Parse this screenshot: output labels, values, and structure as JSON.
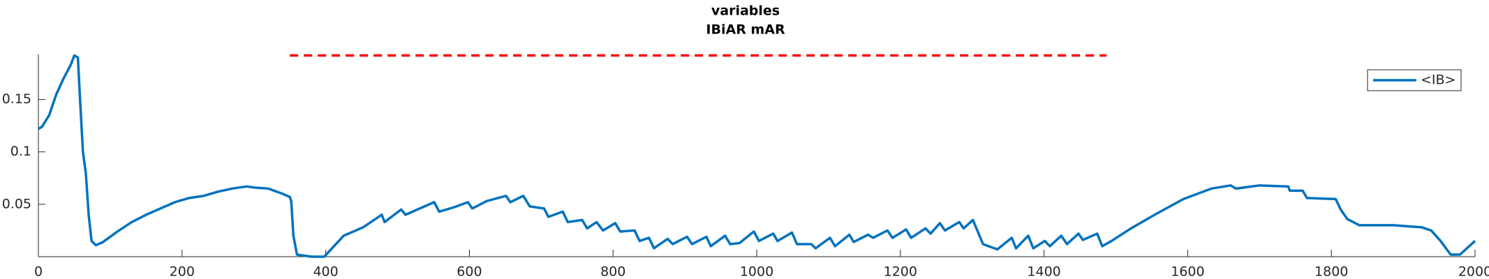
{
  "chart_data": {
    "type": "line",
    "title": "variables",
    "subtitle": "IBiAR mAR",
    "xlim": [
      0,
      2000
    ],
    "ylim": [
      0,
      0.193
    ],
    "xticks": [
      0,
      200,
      400,
      600,
      800,
      1000,
      1200,
      1400,
      1600,
      1800,
      2000
    ],
    "yticks": [
      0.05,
      0.1,
      0.15
    ],
    "legend": "upper right",
    "series": [
      {
        "name": "<IB>",
        "color": "#0072bd",
        "x": [
          0,
          5,
          15,
          25,
          35,
          45,
          50,
          55,
          58,
          62,
          66,
          70,
          74,
          80,
          90,
          110,
          130,
          150,
          170,
          190,
          210,
          230,
          250,
          270,
          290,
          300,
          320,
          340,
          350,
          352,
          355,
          360,
          380,
          398,
          425,
          452,
          478,
          482,
          505,
          511,
          531,
          551,
          558,
          578,
          598,
          604,
          624,
          651,
          657,
          675,
          684,
          704,
          710,
          730,
          737,
          757,
          764,
          777,
          786,
          803,
          810,
          830,
          837,
          850,
          857,
          876,
          883,
          903,
          910,
          930,
          936,
          956,
          963,
          976,
          996,
          1003,
          1023,
          1029,
          1049,
          1056,
          1076,
          1082,
          1102,
          1109,
          1129,
          1135,
          1155,
          1162,
          1182,
          1189,
          1208,
          1215,
          1235,
          1242,
          1255,
          1262,
          1282,
          1288,
          1301,
          1315,
          1335,
          1355,
          1361,
          1378,
          1385,
          1401,
          1408,
          1424,
          1432,
          1448,
          1454,
          1474,
          1481,
          1494,
          1521,
          1554,
          1594,
          1633,
          1660,
          1667,
          1700,
          1740,
          1742,
          1760,
          1766,
          1806,
          1813,
          1822,
          1839,
          1886,
          1926,
          1939,
          1952,
          1966,
          1979,
          2000
        ],
        "values": [
          0.122,
          0.124,
          0.135,
          0.155,
          0.17,
          0.183,
          0.192,
          0.19,
          0.15,
          0.1,
          0.08,
          0.04,
          0.015,
          0.011,
          0.014,
          0.024,
          0.033,
          0.04,
          0.046,
          0.052,
          0.056,
          0.058,
          0.062,
          0.065,
          0.067,
          0.066,
          0.065,
          0.06,
          0.057,
          0.053,
          0.02,
          0.002,
          0,
          0,
          0.02,
          0.028,
          0.04,
          0.033,
          0.045,
          0.04,
          0.046,
          0.052,
          0.043,
          0.047,
          0.052,
          0.046,
          0.053,
          0.058,
          0.052,
          0.058,
          0.048,
          0.046,
          0.038,
          0.043,
          0.033,
          0.035,
          0.027,
          0.033,
          0.025,
          0.032,
          0.024,
          0.025,
          0.015,
          0.018,
          0.008,
          0.017,
          0.012,
          0.019,
          0.012,
          0.019,
          0.01,
          0.02,
          0.012,
          0.013,
          0.024,
          0.015,
          0.022,
          0.015,
          0.023,
          0.012,
          0.012,
          0.008,
          0.018,
          0.01,
          0.021,
          0.014,
          0.021,
          0.018,
          0.025,
          0.018,
          0.026,
          0.018,
          0.027,
          0.022,
          0.032,
          0.025,
          0.033,
          0.027,
          0.035,
          0.012,
          0.007,
          0.018,
          0.008,
          0.02,
          0.008,
          0.015,
          0.01,
          0.02,
          0.012,
          0.022,
          0.016,
          0.022,
          0.01,
          0.015,
          0.027,
          0.04,
          0.055,
          0.065,
          0.068,
          0.065,
          0.068,
          0.067,
          0.063,
          0.063,
          0.056,
          0.055,
          0.045,
          0.036,
          0.03,
          0.03,
          0.028,
          0.025,
          0.015,
          0.002,
          0.002,
          0.015
        ]
      }
    ],
    "reference_lines": [
      {
        "x": [
          350,
          1487
        ],
        "y": 0.192,
        "color": "#ff0000",
        "style": "dashed"
      }
    ]
  }
}
